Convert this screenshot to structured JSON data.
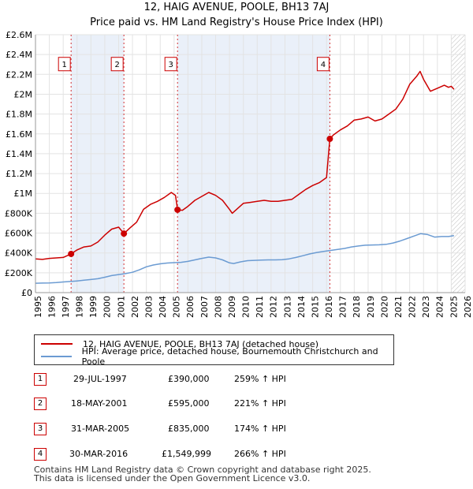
{
  "chart_data": {
    "type": "line",
    "title": "12, HAIG AVENUE, POOLE, BH13 7AJ",
    "subtitle": "Price paid vs. HM Land Registry's House Price Index (HPI)",
    "xlim": [
      1995,
      2026
    ],
    "ylim": [
      0,
      2600000
    ],
    "x_ticks": [
      "1995",
      "1996",
      "1997",
      "1998",
      "1999",
      "2000",
      "2001",
      "2002",
      "2003",
      "2004",
      "2005",
      "2006",
      "2007",
      "2008",
      "2009",
      "2010",
      "2011",
      "2012",
      "2013",
      "2014",
      "2015",
      "2016",
      "2017",
      "2018",
      "2019",
      "2020",
      "2021",
      "2022",
      "2023",
      "2024",
      "2025",
      "2026"
    ],
    "y_ticks": [
      {
        "value": 0,
        "label": "£0"
      },
      {
        "value": 200000,
        "label": "£200K"
      },
      {
        "value": 400000,
        "label": "£400K"
      },
      {
        "value": 600000,
        "label": "£600K"
      },
      {
        "value": 800000,
        "label": "£800K"
      },
      {
        "value": 1000000,
        "label": "£1M"
      },
      {
        "value": 1200000,
        "label": "£1.2M"
      },
      {
        "value": 1400000,
        "label": "£1.4M"
      },
      {
        "value": 1600000,
        "label": "£1.6M"
      },
      {
        "value": 1800000,
        "label": "£1.8M"
      },
      {
        "value": 2000000,
        "label": "£2M"
      },
      {
        "value": 2200000,
        "label": "£2.2M"
      },
      {
        "value": 2400000,
        "label": "£2.4M"
      },
      {
        "value": 2600000,
        "label": "£2.6M"
      }
    ],
    "series": [
      {
        "name": "12, HAIG AVENUE, POOLE, BH13 7AJ (detached house)",
        "color": "#cc0000",
        "x": [
          1995.0,
          1995.5,
          1996.0,
          1996.5,
          1997.0,
          1997.57,
          1998.0,
          1998.5,
          1999.0,
          1999.5,
          2000.0,
          2000.5,
          2001.0,
          2001.38,
          2001.8,
          2002.3,
          2002.8,
          2003.3,
          2003.8,
          2004.3,
          2004.8,
          2005.1,
          2005.25,
          2005.6,
          2006.0,
          2006.5,
          2007.0,
          2007.5,
          2008.0,
          2008.5,
          2009.0,
          2009.2,
          2009.6,
          2010.0,
          2010.5,
          2011.0,
          2011.5,
          2012.0,
          2012.5,
          2013.0,
          2013.5,
          2014.0,
          2014.5,
          2015.0,
          2015.5,
          2016.0,
          2016.24,
          2016.5,
          2017.0,
          2017.5,
          2018.0,
          2018.5,
          2019.0,
          2019.5,
          2020.0,
          2020.5,
          2021.0,
          2021.5,
          2022.0,
          2022.5,
          2022.75,
          2023.0,
          2023.5,
          2024.0,
          2024.5,
          2024.8,
          2025.0,
          2025.2
        ],
        "values": [
          340000,
          335000,
          345000,
          350000,
          355000,
          390000,
          430000,
          460000,
          470000,
          510000,
          580000,
          640000,
          660000,
          595000,
          650000,
          710000,
          840000,
          890000,
          920000,
          960000,
          1010000,
          980000,
          835000,
          830000,
          870000,
          930000,
          970000,
          1010000,
          980000,
          930000,
          840000,
          800000,
          850000,
          900000,
          910000,
          920000,
          930000,
          920000,
          920000,
          930000,
          940000,
          990000,
          1040000,
          1080000,
          1110000,
          1160000,
          1549999,
          1590000,
          1640000,
          1680000,
          1740000,
          1750000,
          1770000,
          1730000,
          1750000,
          1800000,
          1850000,
          1950000,
          2100000,
          2180000,
          2230000,
          2150000,
          2030000,
          2060000,
          2090000,
          2070000,
          2080000,
          2050000
        ]
      },
      {
        "name": "HPI: Average price, detached house, Bournemouth Christchurch and Poole",
        "color": "#6b9bd2",
        "x": [
          1995.0,
          1995.5,
          1996.0,
          1996.5,
          1997.0,
          1997.5,
          1998.0,
          1998.5,
          1999.0,
          1999.5,
          2000.0,
          2000.5,
          2001.0,
          2001.5,
          2002.0,
          2002.5,
          2003.0,
          2003.5,
          2004.0,
          2004.5,
          2005.0,
          2005.5,
          2006.0,
          2006.5,
          2007.0,
          2007.5,
          2008.0,
          2008.5,
          2009.0,
          2009.3,
          2009.8,
          2010.3,
          2010.8,
          2011.3,
          2011.8,
          2012.3,
          2012.8,
          2013.3,
          2013.8,
          2014.3,
          2014.8,
          2015.3,
          2015.8,
          2016.3,
          2016.8,
          2017.3,
          2017.8,
          2018.3,
          2018.8,
          2019.3,
          2019.8,
          2020.3,
          2020.8,
          2021.3,
          2021.8,
          2022.3,
          2022.8,
          2023.3,
          2023.8,
          2024.3,
          2024.8,
          2025.2
        ],
        "values": [
          95000,
          96000,
          98000,
          102000,
          107000,
          112000,
          118000,
          125000,
          132000,
          140000,
          155000,
          172000,
          182000,
          192000,
          205000,
          230000,
          260000,
          278000,
          290000,
          298000,
          302000,
          305000,
          315000,
          330000,
          345000,
          358000,
          350000,
          330000,
          300000,
          293000,
          310000,
          322000,
          325000,
          328000,
          330000,
          330000,
          332000,
          340000,
          355000,
          372000,
          390000,
          405000,
          415000,
          425000,
          435000,
          445000,
          460000,
          470000,
          478000,
          480000,
          482000,
          487000,
          500000,
          520000,
          545000,
          570000,
          595000,
          585000,
          560000,
          565000,
          565000,
          575000
        ]
      }
    ],
    "sales": [
      {
        "label": "1",
        "x": 1997.57,
        "value": 390000,
        "date": "29-JUL-1997",
        "price": "£390,000",
        "hpi": "259% ↑ HPI"
      },
      {
        "label": "2",
        "x": 2001.38,
        "value": 595000,
        "date": "18-MAY-2001",
        "price": "£595,000",
        "hpi": "221% ↑ HPI"
      },
      {
        "label": "3",
        "x": 2005.25,
        "value": 835000,
        "date": "31-MAR-2005",
        "price": "£835,000",
        "hpi": "174% ↑ HPI"
      },
      {
        "label": "4",
        "x": 2016.24,
        "value": 1549999,
        "date": "30-MAR-2016",
        "price": "£1,549,999",
        "hpi": "266% ↑ HPI"
      }
    ],
    "marker_label_value": 2300000,
    "shaded_ranges": [
      [
        1997.57,
        2001.38
      ],
      [
        2005.25,
        2016.24
      ]
    ],
    "hatched_from": 2025.0,
    "legend_position": "below"
  },
  "legend": {
    "property_label": "12, HAIG AVENUE, POOLE, BH13 7AJ (detached house)",
    "hpi_label": "HPI: Average price, detached house, Bournemouth Christchurch and Poole"
  },
  "footer": {
    "line1": "Contains HM Land Registry data © Crown copyright and database right 2025.",
    "line2": "This data is licensed under the Open Government Licence v3.0."
  }
}
